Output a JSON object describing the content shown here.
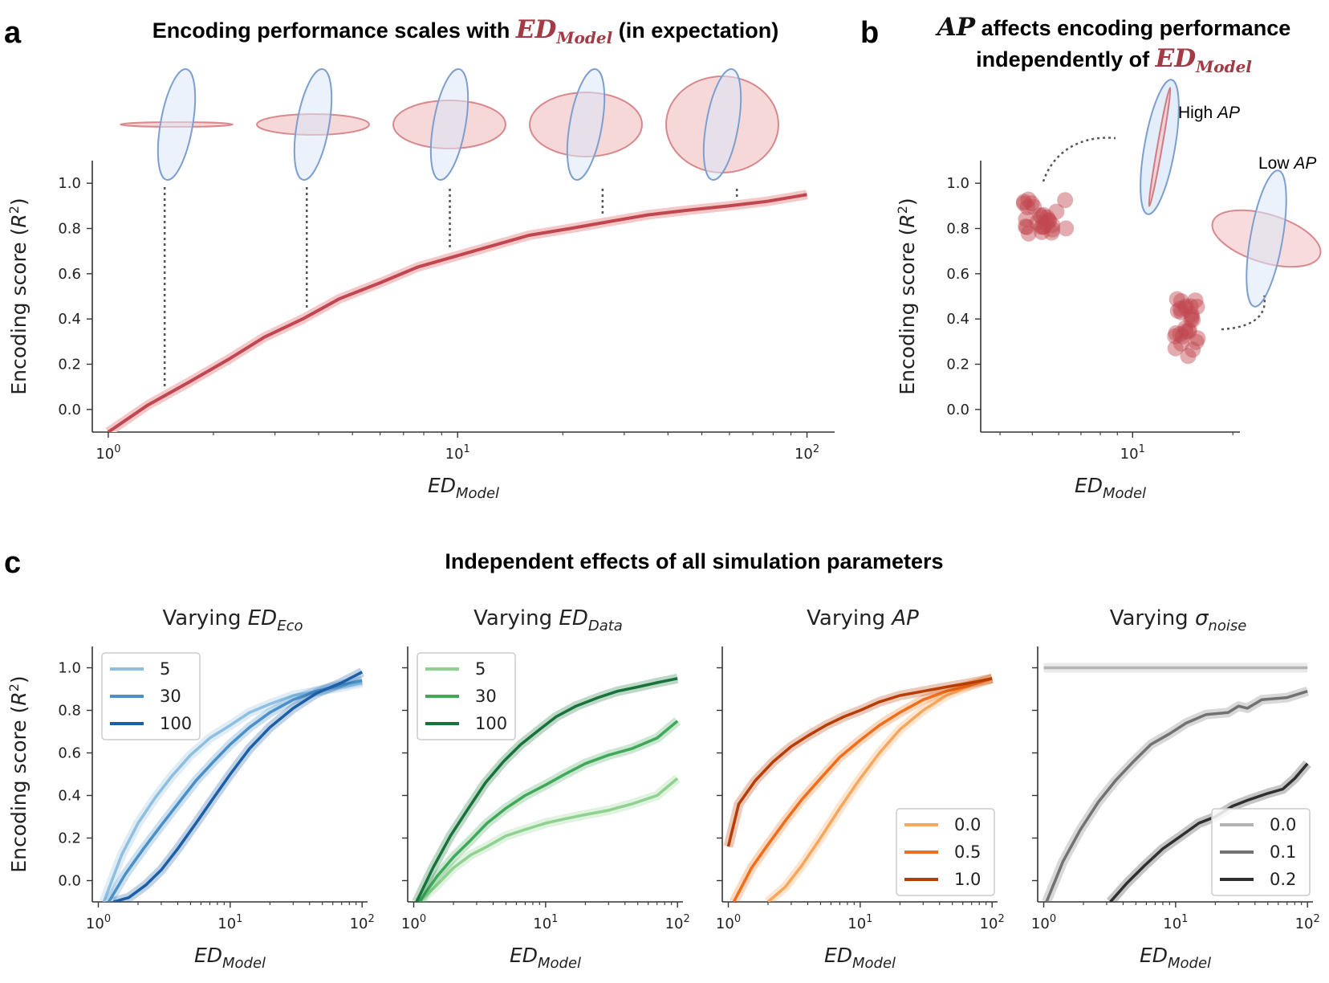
{
  "figure": {
    "panel_letters": {
      "a": "a",
      "b": "b",
      "c": "c"
    },
    "panel_a_title": {
      "pre": "Encoding performance scales with ",
      "ed": "ED",
      "model": "Model",
      "post": " (in expectation)"
    },
    "panel_b_title": {
      "ap": "AP",
      "line1": " affects encoding performance",
      "line2": "independently of ",
      "ed": "ED",
      "model": "Model"
    },
    "panel_b_annotations": {
      "high": "High ",
      "low": "Low ",
      "ap": "AP"
    },
    "panel_c_title": "Independent effects of all simulation parameters",
    "y_label": "Encoding score (R²)",
    "y_label_parts": {
      "main": "Encoding score (",
      "var": "R",
      "sup": "2",
      "close": ")"
    },
    "x_label_parts": {
      "main": "ED",
      "sub": "Model"
    },
    "subplot_titles": [
      {
        "pre": "Varying ",
        "main": "ED",
        "sub": "Eco"
      },
      {
        "pre": "Varying ",
        "main": "ED",
        "sub": "Data"
      },
      {
        "pre": "Varying ",
        "main": "AP",
        "sub": ""
      },
      {
        "pre": "Varying ",
        "main": "σ",
        "sub": "noise"
      }
    ],
    "x_ticks": [
      {
        "base": "10",
        "exp": "0"
      },
      {
        "base": "10",
        "exp": "1"
      },
      {
        "base": "10",
        "exp": "2"
      }
    ],
    "y_ticks": [
      "0.0",
      "0.2",
      "0.4",
      "0.6",
      "0.8",
      "1.0"
    ]
  },
  "colors": {
    "red": "#c0474f",
    "red_fill": "#f4c7c9",
    "blue_ellipse": "#7d9fcf",
    "blue_fill": "#dbe7f8",
    "blues": [
      "#8fbfe0",
      "#4a90c8",
      "#1c5fa6"
    ],
    "greens": [
      "#8fd18f",
      "#41a85a",
      "#17733a"
    ],
    "oranges": [
      "#f9a65a",
      "#ee6e1a",
      "#b83d05"
    ],
    "greys": [
      "#b4b4b4",
      "#727272",
      "#2f2f2f"
    ]
  },
  "chart_data": [
    {
      "type": "line",
      "id": "a",
      "xscale": "log",
      "xlim": [
        0.9,
        120
      ],
      "ylim": [
        -0.1,
        1.1
      ],
      "series": [
        {
          "x": [
            1,
            1.3,
            1.7,
            2.2,
            2.8,
            3.6,
            4.6,
            6,
            7.7,
            10,
            13,
            16,
            21,
            27,
            35,
            45,
            60,
            77,
            100
          ],
          "y": [
            -0.1,
            0.02,
            0.12,
            0.22,
            0.32,
            0.4,
            0.49,
            0.56,
            0.63,
            0.68,
            0.73,
            0.77,
            0.8,
            0.83,
            0.86,
            0.88,
            0.9,
            0.92,
            0.95
          ]
        }
      ],
      "ellipse_markers_x": [
        1.45,
        3.7,
        9.5,
        26,
        63
      ]
    },
    {
      "type": "scatter",
      "id": "b",
      "xscale": "log",
      "xlim": [
        3.5,
        21
      ],
      "ylim": [
        -0.1,
        1.1
      ],
      "clusters": [
        {
          "label": "High AP",
          "x_range": [
            4.6,
            6.4
          ],
          "y_mean": 0.85,
          "n": 28
        },
        {
          "label": "Low AP",
          "x_range": [
            13.4,
            15.8
          ],
          "y_mean": 0.36,
          "n": 28
        }
      ]
    },
    {
      "type": "line",
      "id": "c1",
      "title": "Varying ED_Eco",
      "xscale": "log",
      "ylim": [
        -0.1,
        1.1
      ],
      "legend": [
        "5",
        "30",
        "100"
      ],
      "legend_position": "upper-left",
      "series": [
        {
          "name": "5",
          "x": [
            1.1,
            1.5,
            2,
            2.7,
            3.6,
            5,
            7,
            10,
            14,
            20,
            30,
            45,
            70,
            100
          ],
          "y": [
            -0.1,
            0.12,
            0.27,
            0.39,
            0.49,
            0.59,
            0.67,
            0.73,
            0.79,
            0.83,
            0.87,
            0.89,
            0.91,
            0.93
          ]
        },
        {
          "name": "30",
          "x": [
            1.2,
            1.6,
            2.2,
            3,
            4,
            5.5,
            7.5,
            10,
            14,
            20,
            30,
            45,
            70,
            100
          ],
          "y": [
            -0.1,
            0.03,
            0.15,
            0.26,
            0.36,
            0.47,
            0.56,
            0.64,
            0.72,
            0.79,
            0.85,
            0.89,
            0.92,
            0.94
          ]
        },
        {
          "name": "100",
          "x": [
            1.3,
            1.7,
            2.3,
            3,
            4,
            5.5,
            7.5,
            10,
            14,
            20,
            30,
            45,
            70,
            100
          ],
          "y": [
            -0.1,
            -0.08,
            -0.02,
            0.05,
            0.15,
            0.27,
            0.39,
            0.5,
            0.62,
            0.72,
            0.81,
            0.88,
            0.93,
            0.98
          ]
        }
      ]
    },
    {
      "type": "line",
      "id": "c2",
      "title": "Varying ED_Data",
      "xscale": "log",
      "ylim": [
        -0.1,
        1.1
      ],
      "legend": [
        "5",
        "30",
        "100"
      ],
      "legend_position": "upper-left",
      "series": [
        {
          "name": "5",
          "x": [
            1.1,
            1.5,
            2,
            2.7,
            3.6,
            5,
            7,
            10,
            14,
            20,
            30,
            45,
            70,
            100
          ],
          "y": [
            -0.1,
            -0.02,
            0.06,
            0.12,
            0.16,
            0.21,
            0.24,
            0.27,
            0.29,
            0.31,
            0.33,
            0.36,
            0.4,
            0.48
          ]
        },
        {
          "name": "30",
          "x": [
            1.1,
            1.5,
            2,
            2.7,
            3.6,
            5,
            7,
            10,
            14,
            20,
            30,
            45,
            70,
            100
          ],
          "y": [
            -0.1,
            0.02,
            0.11,
            0.19,
            0.27,
            0.34,
            0.4,
            0.45,
            0.5,
            0.55,
            0.59,
            0.62,
            0.67,
            0.75
          ]
        },
        {
          "name": "100",
          "x": [
            1.05,
            1.4,
            1.9,
            2.6,
            3.5,
            4.8,
            6.5,
            9,
            12,
            17,
            25,
            35,
            50,
            70,
            100
          ],
          "y": [
            -0.1,
            0.06,
            0.21,
            0.34,
            0.46,
            0.56,
            0.64,
            0.71,
            0.77,
            0.82,
            0.86,
            0.89,
            0.91,
            0.93,
            0.95
          ]
        }
      ]
    },
    {
      "type": "line",
      "id": "c3",
      "title": "Varying AP",
      "xscale": "log",
      "ylim": [
        -0.1,
        1.1
      ],
      "legend": [
        "0.0",
        "0.5",
        "1.0"
      ],
      "legend_position": "lower-right",
      "series": [
        {
          "name": "0.0",
          "x": [
            2,
            2.7,
            3.6,
            5,
            7,
            10,
            14,
            20,
            30,
            45,
            70,
            100
          ],
          "y": [
            -0.1,
            -0.03,
            0.07,
            0.2,
            0.34,
            0.48,
            0.6,
            0.71,
            0.8,
            0.87,
            0.92,
            0.95
          ]
        },
        {
          "name": "0.5",
          "x": [
            1.1,
            1.5,
            2,
            2.7,
            3.6,
            5,
            7,
            10,
            14,
            20,
            30,
            45,
            70,
            100
          ],
          "y": [
            -0.1,
            0.06,
            0.17,
            0.28,
            0.38,
            0.48,
            0.58,
            0.66,
            0.73,
            0.79,
            0.85,
            0.89,
            0.92,
            0.95
          ]
        },
        {
          "name": "1.0",
          "x": [
            1,
            1.2,
            1.6,
            2.2,
            3,
            4,
            5.5,
            7.5,
            10,
            14,
            20,
            30,
            45,
            70,
            100
          ],
          "y": [
            0.16,
            0.36,
            0.47,
            0.56,
            0.63,
            0.68,
            0.73,
            0.77,
            0.8,
            0.84,
            0.87,
            0.89,
            0.91,
            0.93,
            0.95
          ]
        }
      ]
    },
    {
      "type": "line",
      "id": "c4",
      "title": "Varying σ_noise",
      "xscale": "log",
      "ylim": [
        -0.1,
        1.1
      ],
      "legend": [
        "0.0",
        "0.1",
        "0.2"
      ],
      "legend_position": "lower-right",
      "series": [
        {
          "name": "0.0",
          "x": [
            1,
            100
          ],
          "y": [
            1.0,
            1.0
          ]
        },
        {
          "name": "0.1",
          "x": [
            1.05,
            1.4,
            1.9,
            2.6,
            3.5,
            4.8,
            6.5,
            9,
            12,
            17,
            25,
            30,
            35,
            45,
            70,
            100
          ],
          "y": [
            -0.1,
            0.09,
            0.24,
            0.37,
            0.47,
            0.56,
            0.64,
            0.69,
            0.74,
            0.78,
            0.79,
            0.82,
            0.81,
            0.85,
            0.86,
            0.89
          ]
        },
        {
          "name": "0.2",
          "x": [
            3.2,
            4.3,
            5.8,
            8,
            11,
            15,
            20,
            27,
            36,
            50,
            65,
            80,
            100
          ],
          "y": [
            -0.1,
            -0.01,
            0.07,
            0.15,
            0.21,
            0.27,
            0.3,
            0.35,
            0.38,
            0.41,
            0.43,
            0.48,
            0.55
          ]
        }
      ]
    }
  ]
}
